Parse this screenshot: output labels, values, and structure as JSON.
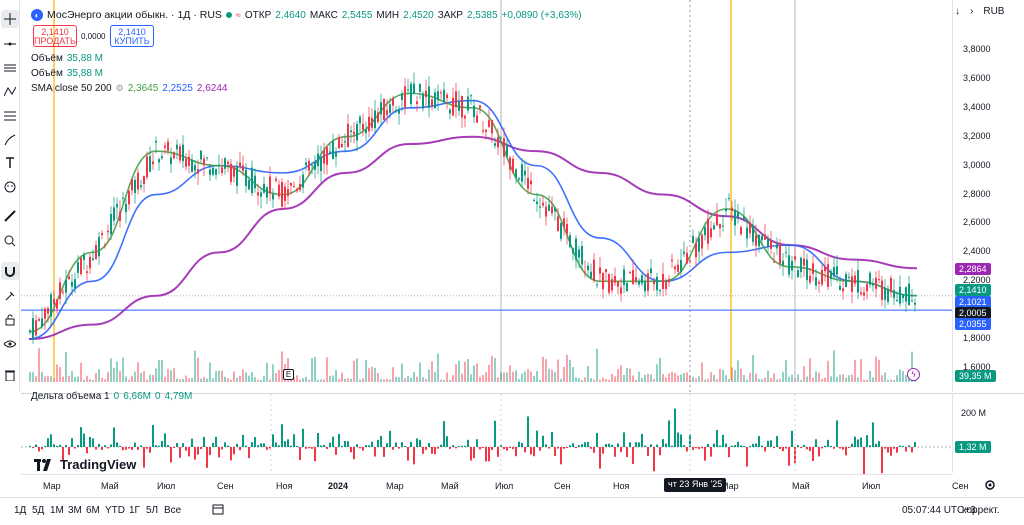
{
  "toolbar": {
    "tools": [
      "crosshair-icon",
      "horizontal-line-icon",
      "trend-lines-icon",
      "pitchfork-icon",
      "fib-icon",
      "brush-icon",
      "text-icon",
      "emoji-icon",
      "ruler-icon",
      "zoom-in-icon",
      "magnet-icon",
      "lock-drawing-icon",
      "lock-icon",
      "eye-icon",
      "trash-icon"
    ]
  },
  "header": {
    "symbol_title": "МосЭнерго акции обыкн. · 1Д · RUS",
    "ohlc": {
      "open_label": "ОТКР",
      "open": "2,4640",
      "high_label": "МАКС",
      "high": "2,5455",
      "low_label": "МИН",
      "low": "2,4520",
      "close_label": "ЗАКР",
      "close": "2,5385",
      "change": "+0,0890 (+3,63%)"
    },
    "currency": "RUB"
  },
  "trade": {
    "sell_price": "2,1410",
    "sell_label": "ПРОДАТЬ",
    "spread": "0,0000",
    "buy_price": "2,1410",
    "buy_label": "КУПИТЬ"
  },
  "legend": {
    "volume1_label": "Объём",
    "volume1_value": "35,88 M",
    "volume2_label": "Объём",
    "volume2_value": "35,88 M",
    "sma_label": "SMA close 50 200",
    "sma_v1": "2,3645",
    "sma_v2": "2,2525",
    "sma_v3": "2,6244",
    "delta_label": "Дельта объема 1",
    "delta_v1": "0",
    "delta_v2": "6,66M",
    "delta_v3": "0",
    "delta_v4": "4,79M"
  },
  "price_scale": {
    "ticks": [
      "3,8000",
      "3,6000",
      "3,4000",
      "3,2000",
      "3,0000",
      "2,8000",
      "2,6000",
      "2,4000",
      "2,2000",
      "1,8000",
      "1,6000"
    ],
    "tags": [
      {
        "text": "2,2864",
        "color": "#9c27b0"
      },
      {
        "text": "2,1410",
        "color": "#089981"
      },
      {
        "text": "2,1021",
        "color": "#2962ff"
      },
      {
        "text": "2,0005",
        "color": "#131722"
      },
      {
        "text": "2,0355",
        "color": "#2962ff"
      },
      {
        "text": "39,35 M",
        "color": "#089981"
      }
    ]
  },
  "indicator_scale": {
    "tick": "200 M",
    "tag": "1,32 M"
  },
  "time_axis": {
    "labels": [
      "Мар",
      "Май",
      "Июл",
      "Сен",
      "Ноя",
      "2024",
      "Мар",
      "Май",
      "Июл",
      "Сен",
      "Ноя",
      "Мар",
      "Май",
      "Июл",
      "Сен"
    ],
    "highlight": "чт 23 Янв '25"
  },
  "bottom": {
    "timeframes": [
      "1Д",
      "5Д",
      "1М",
      "3М",
      "6М",
      "YTD",
      "1Г",
      "5Л",
      "Все"
    ],
    "clock": "05:07:44 UTC+3",
    "adjust": "коррект."
  },
  "logo": {
    "text": "TradingView"
  },
  "event_marker": "E",
  "chart_data": {
    "type": "line",
    "title": "МосЭнерго акции обыкн. · 1Д · RUS",
    "xlabel": "",
    "ylabel": "",
    "ylim": [
      1.6,
      3.9
    ],
    "x": [
      "Мар 2023",
      "Май 2023",
      "Июл 2023",
      "Сен 2023",
      "Ноя 2023",
      "Янв 2024",
      "Мар 2024",
      "Май 2024",
      "Июл 2024",
      "Сен 2024",
      "Ноя 2024",
      "Янв 2025",
      "Мар 2025",
      "Май 2025",
      "Июл 2025"
    ],
    "series": [
      {
        "name": "",
        "color": "#9c27b0",
        "values": [
          1.8,
          1.9,
          2.1,
          2.4,
          2.7,
          2.95,
          3.15,
          3.2,
          3.1,
          2.95,
          2.8,
          2.65,
          2.45,
          2.35,
          2.29
        ]
      },
      {
        "name": "",
        "color": "#2962ff",
        "values": [
          1.8,
          2.2,
          2.8,
          3.0,
          2.95,
          3.1,
          3.4,
          3.45,
          3.0,
          2.5,
          2.2,
          2.4,
          2.45,
          2.2,
          2.1
        ]
      },
      {
        "name": "",
        "color": "#43a047",
        "values": [
          1.85,
          2.4,
          3.1,
          3.0,
          2.8,
          3.2,
          3.5,
          3.4,
          2.8,
          2.2,
          2.2,
          2.7,
          2.3,
          2.2,
          2.1
        ]
      }
    ],
    "grid": false,
    "horizontal_line": 2.0005
  }
}
